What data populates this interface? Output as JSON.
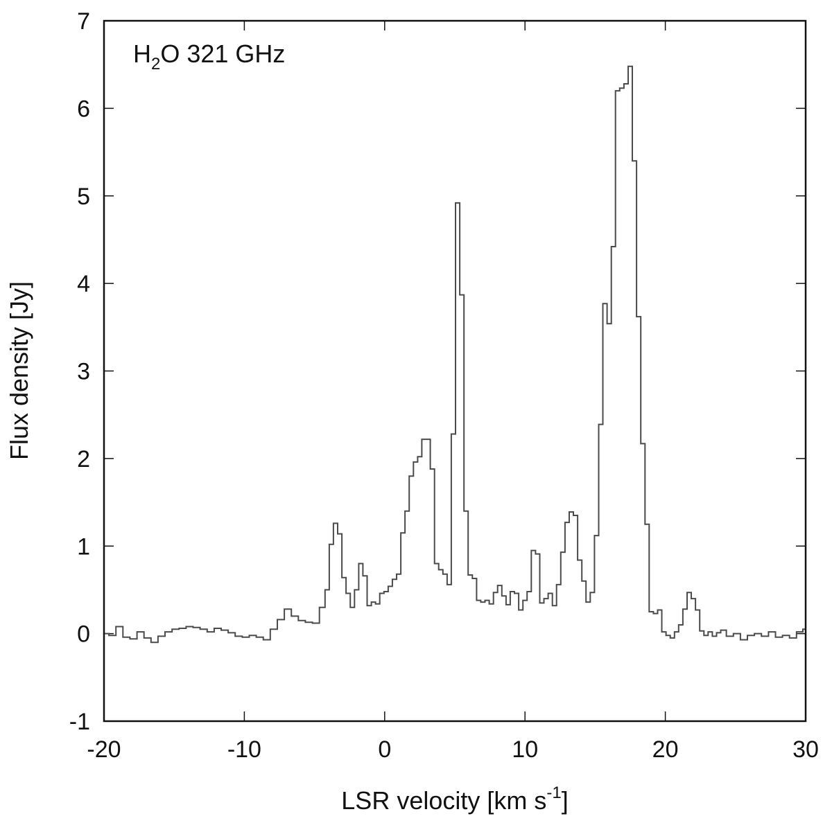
{
  "chart_data": {
    "type": "line",
    "style": "step",
    "annotation": {
      "main_a": "H",
      "sub": "2",
      "main_b": "O 321 GHz"
    },
    "xlabel": {
      "text": "LSR velocity [km s",
      "sup": "-1",
      "tail": "]"
    },
    "ylabel": "Flux density [Jy]",
    "xlim": [
      -20,
      30
    ],
    "ylim": [
      -1,
      7
    ],
    "xticks": [
      -20,
      -10,
      0,
      10,
      20,
      30
    ],
    "yticks": [
      -1,
      0,
      1,
      2,
      3,
      4,
      5,
      6,
      7
    ],
    "grid": false,
    "series": [
      {
        "color": "#4a4a4a",
        "x": [
          -19.9,
          -19.4,
          -18.9,
          -18.4,
          -17.9,
          -17.4,
          -16.9,
          -16.4,
          -15.9,
          -15.4,
          -14.9,
          -14.4,
          -13.9,
          -13.4,
          -12.9,
          -12.4,
          -11.9,
          -11.4,
          -10.9,
          -10.4,
          -9.9,
          -9.4,
          -8.9,
          -8.4,
          -7.9,
          -7.4,
          -6.9,
          -6.4,
          -5.9,
          -5.4,
          -4.9,
          -4.4,
          -4.1,
          -3.8,
          -3.5,
          -3.2,
          -2.9,
          -2.6,
          -2.3,
          -2.0,
          -1.7,
          -1.4,
          -1.1,
          -0.8,
          -0.5,
          -0.2,
          0.1,
          0.4,
          0.7,
          1.0,
          1.3,
          1.6,
          1.9,
          2.2,
          2.5,
          2.8,
          3.1,
          3.4,
          3.7,
          4.0,
          4.3,
          4.6,
          4.9,
          5.2,
          5.5,
          5.8,
          6.1,
          6.4,
          6.7,
          7.0,
          7.3,
          7.6,
          7.9,
          8.2,
          8.5,
          8.8,
          9.1,
          9.4,
          9.7,
          10.0,
          10.3,
          10.6,
          10.9,
          11.2,
          11.5,
          11.8,
          12.1,
          12.4,
          12.7,
          13.0,
          13.3,
          13.6,
          13.9,
          14.2,
          14.5,
          14.8,
          15.1,
          15.4,
          15.7,
          16.0,
          16.3,
          16.6,
          16.9,
          17.2,
          17.5,
          17.8,
          18.1,
          18.4,
          18.7,
          19.0,
          19.3,
          19.6,
          19.9,
          20.2,
          20.5,
          20.8,
          21.1,
          21.4,
          21.7,
          22.0,
          22.3,
          22.6,
          22.9,
          23.2,
          23.5,
          23.8,
          24.1,
          24.6,
          25.1,
          25.6,
          26.1,
          26.6,
          27.1,
          27.6,
          28.1,
          28.6,
          29.1,
          29.6,
          30.0
        ],
        "y": [
          0.0,
          -0.02,
          0.08,
          -0.04,
          -0.06,
          0.02,
          -0.05,
          -0.1,
          -0.03,
          0.02,
          0.05,
          0.06,
          0.08,
          0.07,
          0.05,
          0.02,
          0.06,
          0.04,
          0.01,
          -0.03,
          -0.04,
          -0.02,
          -0.04,
          -0.07,
          0.05,
          0.16,
          0.28,
          0.2,
          0.15,
          0.13,
          0.12,
          0.3,
          0.5,
          1.02,
          1.26,
          1.14,
          0.64,
          0.46,
          0.3,
          0.5,
          0.8,
          0.66,
          0.32,
          0.36,
          0.34,
          0.46,
          0.48,
          0.54,
          0.62,
          0.68,
          1.15,
          1.4,
          1.8,
          1.96,
          2.02,
          2.22,
          2.22,
          1.88,
          0.8,
          0.73,
          0.68,
          0.56,
          2.28,
          4.92,
          3.87,
          1.4,
          0.67,
          0.63,
          0.38,
          0.36,
          0.38,
          0.34,
          0.47,
          0.55,
          0.43,
          0.33,
          0.48,
          0.46,
          0.27,
          0.38,
          0.48,
          0.95,
          0.91,
          0.35,
          0.4,
          0.46,
          0.32,
          0.56,
          0.93,
          1.27,
          1.39,
          1.35,
          0.84,
          0.6,
          0.36,
          0.47,
          1.12,
          2.39,
          3.77,
          3.54,
          4.42,
          6.2,
          6.23,
          6.28,
          6.48,
          5.4,
          3.62,
          2.17,
          1.25,
          0.25,
          0.23,
          0.27,
          0.02,
          -0.02,
          -0.05,
          0.02,
          0.1,
          0.28,
          0.47,
          0.4,
          0.27,
          0.03,
          -0.02,
          0.02,
          -0.03,
          0.01,
          0.04,
          -0.03,
          0.0,
          -0.07,
          -0.02,
          0.0,
          -0.03,
          0.02,
          -0.04,
          -0.02,
          -0.05,
          0.02,
          0.05
        ]
      }
    ]
  }
}
